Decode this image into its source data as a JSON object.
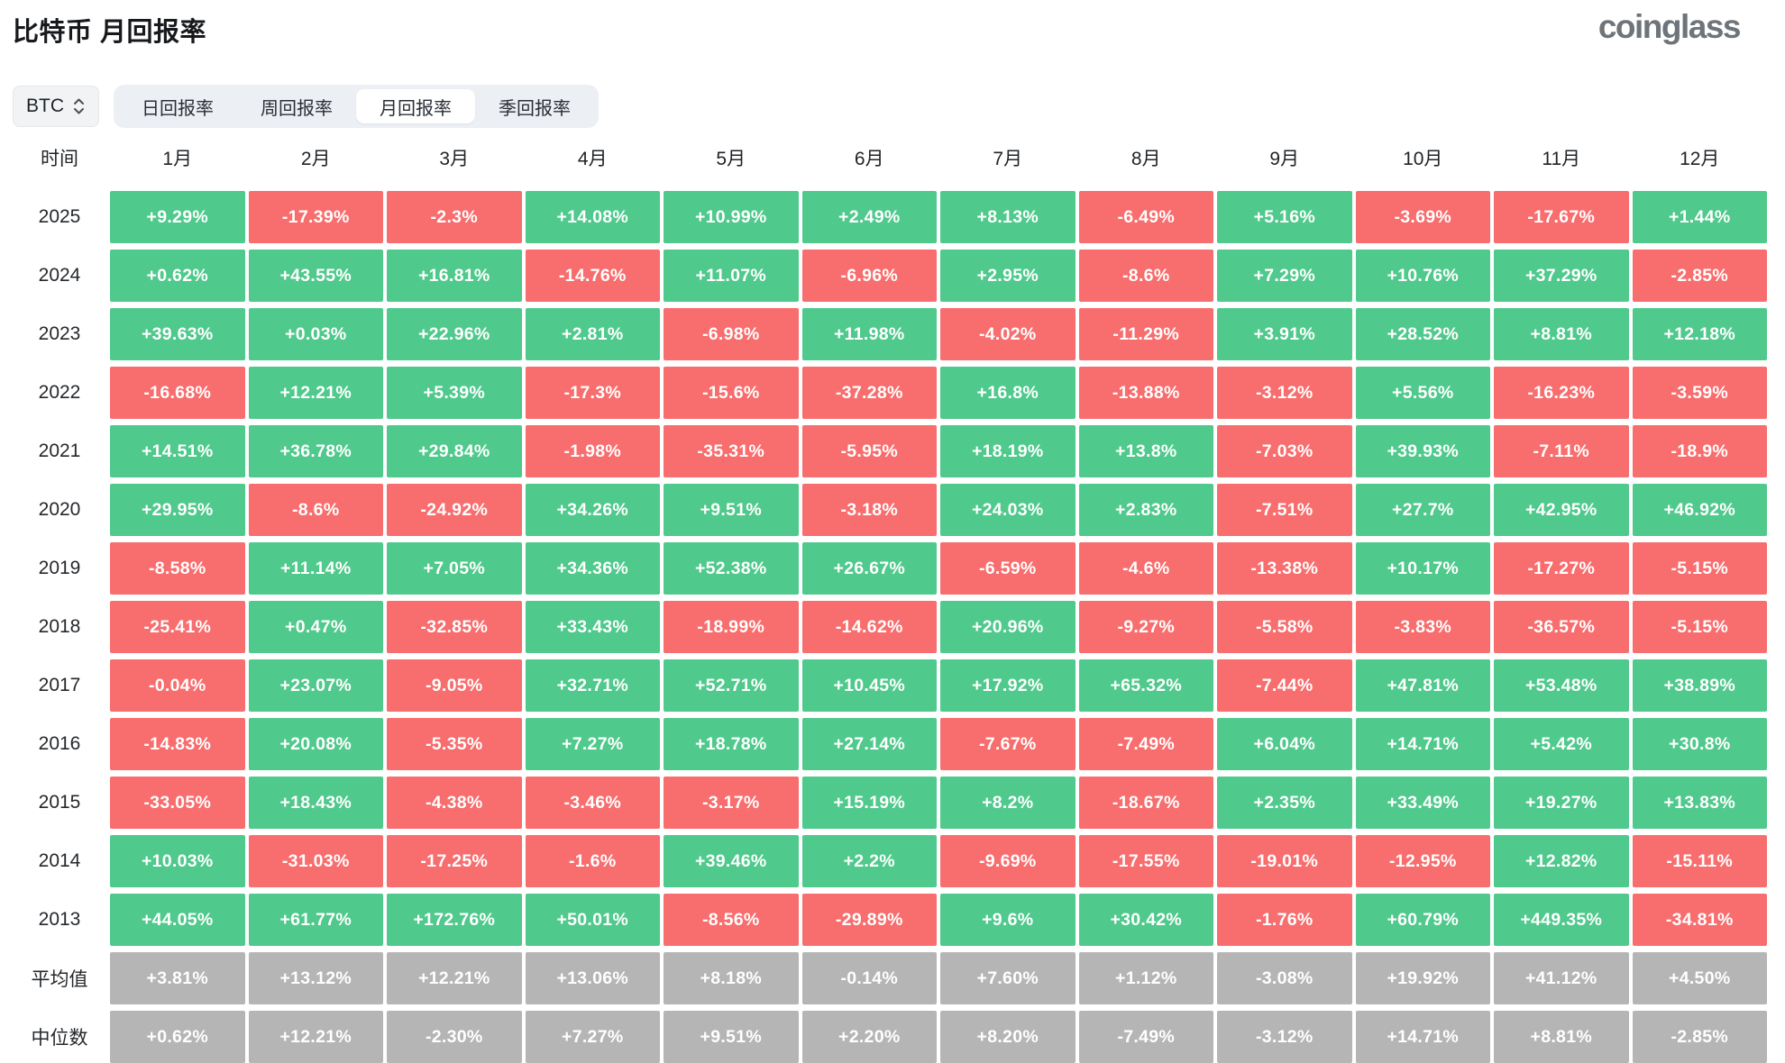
{
  "header": {
    "title": "比特币 月回报率",
    "logo": "coinglass"
  },
  "controls": {
    "symbol": "BTC",
    "tabs": [
      {
        "key": "daily",
        "label": "日回报率",
        "active": false
      },
      {
        "key": "weekly",
        "label": "周回报率",
        "active": false
      },
      {
        "key": "monthly",
        "label": "月回报率",
        "active": true
      },
      {
        "key": "quarterly",
        "label": "季回报率",
        "active": false
      }
    ]
  },
  "chart_data": {
    "type": "heatmap",
    "title": "比特币 月回报率",
    "columns": [
      "时间",
      "1月",
      "2月",
      "3月",
      "4月",
      "5月",
      "6月",
      "7月",
      "8月",
      "9月",
      "10月",
      "11月",
      "12月"
    ],
    "rows": [
      {
        "label": "2025",
        "kind": "year",
        "values": [
          "+9.29%",
          "-17.39%",
          "-2.3%",
          "+14.08%",
          "+10.99%",
          "+2.49%",
          "+8.13%",
          "-6.49%",
          "+5.16%",
          "-3.69%",
          "-17.67%",
          "+1.44%"
        ]
      },
      {
        "label": "2024",
        "kind": "year",
        "values": [
          "+0.62%",
          "+43.55%",
          "+16.81%",
          "-14.76%",
          "+11.07%",
          "-6.96%",
          "+2.95%",
          "-8.6%",
          "+7.29%",
          "+10.76%",
          "+37.29%",
          "-2.85%"
        ]
      },
      {
        "label": "2023",
        "kind": "year",
        "values": [
          "+39.63%",
          "+0.03%",
          "+22.96%",
          "+2.81%",
          "-6.98%",
          "+11.98%",
          "-4.02%",
          "-11.29%",
          "+3.91%",
          "+28.52%",
          "+8.81%",
          "+12.18%"
        ]
      },
      {
        "label": "2022",
        "kind": "year",
        "values": [
          "-16.68%",
          "+12.21%",
          "+5.39%",
          "-17.3%",
          "-15.6%",
          "-37.28%",
          "+16.8%",
          "-13.88%",
          "-3.12%",
          "+5.56%",
          "-16.23%",
          "-3.59%"
        ]
      },
      {
        "label": "2021",
        "kind": "year",
        "values": [
          "+14.51%",
          "+36.78%",
          "+29.84%",
          "-1.98%",
          "-35.31%",
          "-5.95%",
          "+18.19%",
          "+13.8%",
          "-7.03%",
          "+39.93%",
          "-7.11%",
          "-18.9%"
        ]
      },
      {
        "label": "2020",
        "kind": "year",
        "values": [
          "+29.95%",
          "-8.6%",
          "-24.92%",
          "+34.26%",
          "+9.51%",
          "-3.18%",
          "+24.03%",
          "+2.83%",
          "-7.51%",
          "+27.7%",
          "+42.95%",
          "+46.92%"
        ]
      },
      {
        "label": "2019",
        "kind": "year",
        "values": [
          "-8.58%",
          "+11.14%",
          "+7.05%",
          "+34.36%",
          "+52.38%",
          "+26.67%",
          "-6.59%",
          "-4.6%",
          "-13.38%",
          "+10.17%",
          "-17.27%",
          "-5.15%"
        ]
      },
      {
        "label": "2018",
        "kind": "year",
        "values": [
          "-25.41%",
          "+0.47%",
          "-32.85%",
          "+33.43%",
          "-18.99%",
          "-14.62%",
          "+20.96%",
          "-9.27%",
          "-5.58%",
          "-3.83%",
          "-36.57%",
          "-5.15%"
        ]
      },
      {
        "label": "2017",
        "kind": "year",
        "values": [
          "-0.04%",
          "+23.07%",
          "-9.05%",
          "+32.71%",
          "+52.71%",
          "+10.45%",
          "+17.92%",
          "+65.32%",
          "-7.44%",
          "+47.81%",
          "+53.48%",
          "+38.89%"
        ]
      },
      {
        "label": "2016",
        "kind": "year",
        "values": [
          "-14.83%",
          "+20.08%",
          "-5.35%",
          "+7.27%",
          "+18.78%",
          "+27.14%",
          "-7.67%",
          "-7.49%",
          "+6.04%",
          "+14.71%",
          "+5.42%",
          "+30.8%"
        ]
      },
      {
        "label": "2015",
        "kind": "year",
        "values": [
          "-33.05%",
          "+18.43%",
          "-4.38%",
          "-3.46%",
          "-3.17%",
          "+15.19%",
          "+8.2%",
          "-18.67%",
          "+2.35%",
          "+33.49%",
          "+19.27%",
          "+13.83%"
        ]
      },
      {
        "label": "2014",
        "kind": "year",
        "values": [
          "+10.03%",
          "-31.03%",
          "-17.25%",
          "-1.6%",
          "+39.46%",
          "+2.2%",
          "-9.69%",
          "-17.55%",
          "-19.01%",
          "-12.95%",
          "+12.82%",
          "-15.11%"
        ]
      },
      {
        "label": "2013",
        "kind": "year",
        "values": [
          "+44.05%",
          "+61.77%",
          "+172.76%",
          "+50.01%",
          "-8.56%",
          "-29.89%",
          "+9.6%",
          "+30.42%",
          "-1.76%",
          "+60.79%",
          "+449.35%",
          "-34.81%"
        ]
      },
      {
        "label": "平均值",
        "kind": "summary",
        "values": [
          "+3.81%",
          "+13.12%",
          "+12.21%",
          "+13.06%",
          "+8.18%",
          "-0.14%",
          "+7.60%",
          "+1.12%",
          "-3.08%",
          "+19.92%",
          "+41.12%",
          "+4.50%"
        ]
      },
      {
        "label": "中位数",
        "kind": "summary",
        "values": [
          "+0.62%",
          "+12.21%",
          "-2.30%",
          "+7.27%",
          "+9.51%",
          "+2.20%",
          "+8.20%",
          "-7.49%",
          "-3.12%",
          "+14.71%",
          "+8.81%",
          "-2.85%"
        ]
      }
    ],
    "colors": {
      "positive": "#4fc98c",
      "negative": "#f86d6d",
      "summary": "#b5b5b5"
    }
  }
}
